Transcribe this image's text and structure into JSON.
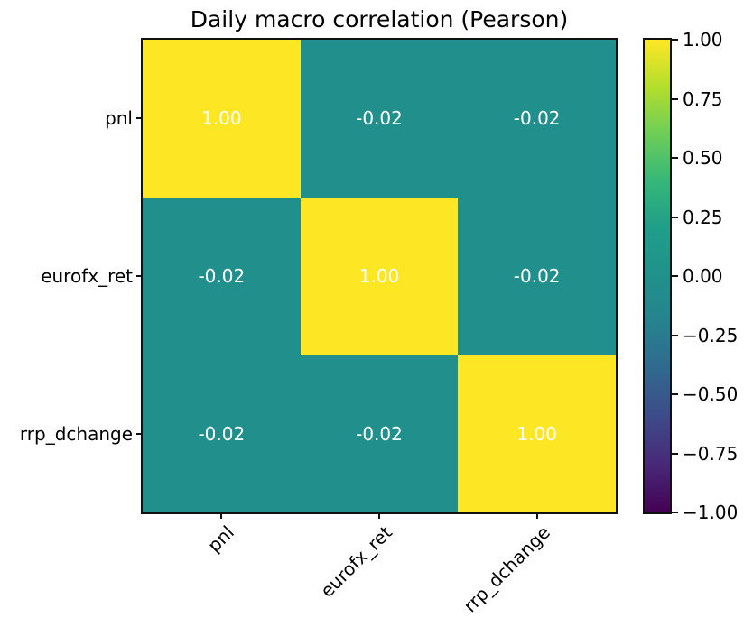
{
  "title": "Daily macro correlation (Pearson)",
  "chart_data": {
    "type": "heatmap",
    "title": "Daily macro correlation (Pearson)",
    "x_labels": [
      "pnl",
      "eurofx_ret",
      "rrp_dchange"
    ],
    "y_labels": [
      "pnl",
      "eurofx_ret",
      "rrp_dchange"
    ],
    "values": [
      [
        1.0,
        -0.02,
        -0.02
      ],
      [
        -0.02,
        1.0,
        -0.02
      ],
      [
        -0.02,
        -0.02,
        1.0
      ]
    ],
    "cell_labels": [
      [
        "1.00",
        "-0.02",
        "-0.02"
      ],
      [
        "-0.02",
        "1.00",
        "-0.02"
      ],
      [
        "-0.02",
        "-0.02",
        "1.00"
      ]
    ],
    "vmin": -1.0,
    "vmax": 1.0,
    "colormap": "viridis",
    "colorbar_ticks": [
      "1.00",
      "0.75",
      "0.50",
      "0.25",
      "0.00",
      "−0.25",
      "−0.50",
      "−0.75",
      "−1.00"
    ],
    "legend_position": "right-colorbar",
    "grid": false,
    "x_tick_rotation_deg": 45
  },
  "colors": {
    "cell_diagonal": "#fde725",
    "cell_offdiagonal": "#21908c",
    "cell_text": "#ffffff",
    "axis_text": "#000000",
    "spine": "#111111",
    "background": "#ffffff",
    "viridis_stops": [
      "#440154",
      "#482878",
      "#3e4a89",
      "#31688e",
      "#26828e",
      "#21918c",
      "#1f9e89",
      "#35b779",
      "#6dcd59",
      "#b4de2c",
      "#fde725"
    ]
  }
}
